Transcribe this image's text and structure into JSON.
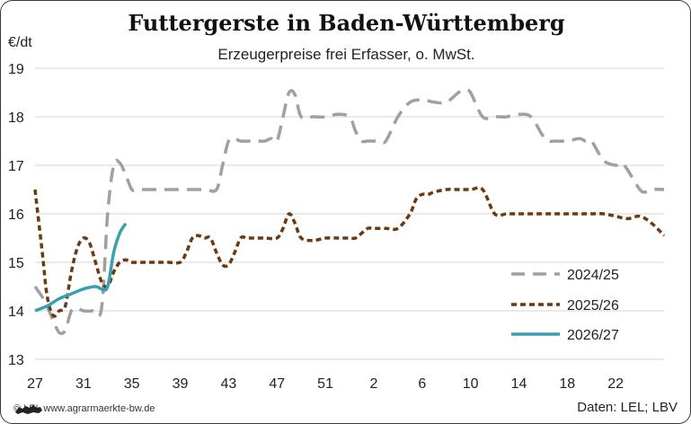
{
  "chart_data": {
    "type": "line",
    "title": "Futtergerste in Baden-Württemberg",
    "subtitle": "Erzeugerpreise frei Erfasser, o. MwSt.",
    "ylabel": "€/dt",
    "ylim": [
      13,
      19
    ],
    "yticks": [
      13,
      14,
      15,
      16,
      17,
      18,
      19
    ],
    "xticks": [
      "27",
      "31",
      "35",
      "39",
      "43",
      "47",
      "51",
      "2",
      "6",
      "10",
      "14",
      "18",
      "22"
    ],
    "x_range": [
      0,
      52
    ],
    "legend_position": "bottom-right",
    "grid": "horizontal",
    "series": [
      {
        "name": "2024/25",
        "color": "#a0a0a0",
        "style": "long-dash",
        "x": [
          0,
          0.8,
          1.5,
          2,
          2.5,
          3,
          3.5,
          4,
          4.8,
          5.5,
          6,
          6.5,
          7,
          7.5,
          8,
          8.5,
          9,
          9.5,
          10,
          10.5,
          11,
          12,
          14,
          15,
          15.5,
          16,
          16.5,
          17,
          18,
          19,
          19.5,
          20,
          20.5,
          21,
          21.5,
          22,
          23,
          24,
          25,
          26,
          26.5,
          27,
          27.5,
          28,
          28.5,
          29,
          30,
          31,
          32,
          33,
          34,
          35,
          35.5,
          36,
          37,
          38,
          38.5,
          39,
          40,
          41,
          42,
          42.5,
          43,
          44,
          45,
          45.5,
          46,
          47,
          48,
          48.5,
          49,
          50,
          50.5,
          51,
          52
        ],
        "values": [
          14.5,
          14.2,
          13.8,
          13.55,
          13.6,
          14.0,
          14.05,
          14.0,
          14.0,
          14.05,
          16.0,
          17.0,
          17.05,
          16.8,
          16.5,
          16.5,
          16.5,
          16.5,
          16.5,
          16.5,
          16.5,
          16.5,
          16.5,
          16.5,
          17.0,
          17.5,
          17.55,
          17.5,
          17.5,
          17.5,
          17.55,
          17.5,
          18.0,
          18.5,
          18.45,
          18.0,
          18.0,
          18.0,
          18.05,
          18.0,
          17.7,
          17.5,
          17.5,
          17.5,
          17.5,
          17.5,
          18.0,
          18.3,
          18.35,
          18.3,
          18.3,
          18.5,
          18.55,
          18.5,
          18.0,
          18.0,
          18.0,
          18.0,
          18.05,
          18.0,
          17.6,
          17.5,
          17.5,
          17.5,
          17.55,
          17.5,
          17.5,
          17.1,
          17.0,
          17.05,
          16.9,
          16.5,
          16.45,
          16.5,
          16.5
        ]
      },
      {
        "name": "2025/26",
        "color": "#6b3a10",
        "style": "short-dash",
        "x": [
          0,
          0.6,
          1,
          1.5,
          2,
          2.5,
          3,
          3.5,
          4,
          4.5,
          5,
          5.5,
          6,
          6.5,
          7,
          7.5,
          8,
          9,
          10,
          11,
          12,
          12.5,
          13,
          13.5,
          14,
          14.5,
          15,
          15.5,
          16,
          16.5,
          17,
          17.5,
          18,
          19,
          20,
          20.5,
          21,
          21.5,
          22,
          23,
          24,
          25,
          26,
          26.5,
          27,
          27.5,
          28,
          29,
          30,
          31,
          31.5,
          32,
          32.5,
          33,
          34,
          35,
          36,
          37,
          38,
          39,
          40,
          41,
          42,
          43,
          44,
          45,
          46,
          47,
          48,
          49,
          50,
          51,
          52
        ],
        "values": [
          16.5,
          15.2,
          14.3,
          13.9,
          14.0,
          14.1,
          14.8,
          15.3,
          15.5,
          15.4,
          15.0,
          14.6,
          14.5,
          14.8,
          15.0,
          15.05,
          15.0,
          15.0,
          15.0,
          15.0,
          15.0,
          15.2,
          15.5,
          15.55,
          15.5,
          15.5,
          15.2,
          14.95,
          14.95,
          15.2,
          15.5,
          15.5,
          15.5,
          15.5,
          15.5,
          15.7,
          16.0,
          15.8,
          15.5,
          15.45,
          15.5,
          15.5,
          15.5,
          15.5,
          15.6,
          15.7,
          15.7,
          15.7,
          15.7,
          16.0,
          16.3,
          16.4,
          16.4,
          16.45,
          16.5,
          16.5,
          16.5,
          16.5,
          16.0,
          16.0,
          16.0,
          16.0,
          16.0,
          16.0,
          16.0,
          16.0,
          16.0,
          16.0,
          15.95,
          15.9,
          15.95,
          15.8,
          15.55
        ]
      },
      {
        "name": "2026/27",
        "color": "#3a9fb0",
        "style": "solid",
        "x": [
          0,
          1,
          2,
          3,
          4,
          5,
          5.5,
          6,
          6.5,
          7,
          7.5
        ],
        "values": [
          14.0,
          14.1,
          14.25,
          14.35,
          14.45,
          14.5,
          14.45,
          14.5,
          15.2,
          15.6,
          15.8
        ]
      }
    ]
  },
  "footer": {
    "copyright": "© LEL www.agrarmaerkte-bw.de",
    "source": "Daten: LEL; LBV"
  }
}
